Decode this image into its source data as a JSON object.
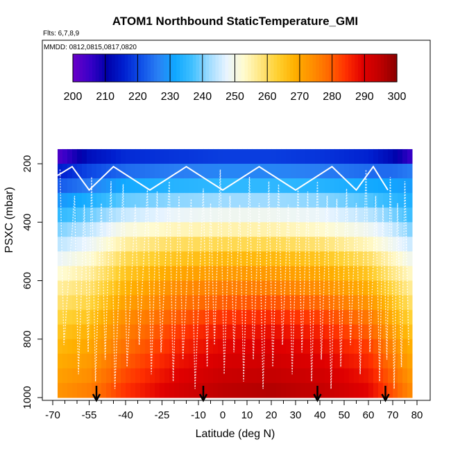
{
  "chart_data": {
    "type": "heatmap",
    "title": "ATOM1 Northbound StaticTemperature_GMI",
    "flights_label": "Flts: 6,7,8,9",
    "dates_label": "MMDD: 0812,0815,0817,0820",
    "xlabel": "Latitude (deg N)",
    "ylabel": "PSXC (mbar)",
    "xlim": [
      -70,
      80
    ],
    "ylim": [
      1000,
      150
    ],
    "x_ticks": [
      -70,
      -55,
      -40,
      -25,
      -10,
      0,
      10,
      20,
      30,
      40,
      50,
      60,
      70,
      80
    ],
    "x_tick_labels": [
      "-70",
      "-55",
      "-40",
      "-25",
      "-10",
      "0",
      "10",
      "20",
      "30",
      "40",
      "50",
      "60",
      "70",
      "80"
    ],
    "x_minor_ticks": [
      -65,
      -60,
      -50,
      -45,
      -35,
      -30,
      -20,
      -15,
      -5,
      5,
      15,
      25,
      35,
      45,
      55,
      65,
      75
    ],
    "y_ticks": [
      200,
      400,
      600,
      800,
      1000
    ],
    "y_tick_labels": [
      "200",
      "400",
      "600",
      "800",
      "1000"
    ],
    "colorbar": {
      "ticks": [
        200,
        210,
        220,
        230,
        240,
        250,
        260,
        270,
        280,
        290,
        300
      ],
      "labels": [
        "200",
        "210",
        "220",
        "230",
        "240",
        "250",
        "260",
        "270",
        "280",
        "290",
        "300"
      ],
      "colors": [
        "#6a00c8",
        "#3a00c8",
        "#0000aa",
        "#0020d0",
        "#1050e8",
        "#2a80f4",
        "#10a8ff",
        "#40c0ff",
        "#a0dcff",
        "#e8f4ff",
        "#fffbd0",
        "#ffe680",
        "#ffd030",
        "#ffb000",
        "#ff9000",
        "#ff6800",
        "#ff3000",
        "#e00000",
        "#c00000",
        "#8a0000"
      ],
      "range": [
        200,
        300
      ]
    },
    "pressure_levels": [
      175,
      225,
      275,
      325,
      375,
      425,
      475,
      525,
      575,
      625,
      675,
      725,
      775,
      825,
      875,
      925,
      975
    ],
    "profile_anchors": [
      {
        "p": 175,
        "lat": [
          -68,
          -55,
          -40,
          -20,
          0,
          20,
          40,
          60,
          70,
          78
        ],
        "t": [
          203,
          213,
          217,
          218,
          219,
          219,
          218,
          216,
          212,
          205
        ]
      },
      {
        "p": 225,
        "lat": [
          -68,
          -55,
          -40,
          -20,
          0,
          20,
          40,
          60,
          70,
          78
        ],
        "t": [
          215,
          220,
          224,
          226,
          227,
          227,
          226,
          224,
          224,
          226
        ]
      },
      {
        "p": 275,
        "lat": [
          -68,
          -55,
          -40,
          -20,
          0,
          20,
          40,
          60,
          70,
          78
        ],
        "t": [
          222,
          226,
          232,
          234,
          235,
          235,
          234,
          232,
          231,
          230
        ]
      },
      {
        "p": 325,
        "lat": [
          -68,
          -55,
          -40,
          -20,
          0,
          20,
          40,
          60,
          70,
          78
        ],
        "t": [
          229,
          233,
          239,
          241,
          242,
          242,
          241,
          238,
          235,
          233
        ]
      },
      {
        "p": 375,
        "lat": [
          -68,
          -55,
          -40,
          -20,
          0,
          20,
          40,
          60,
          70,
          78
        ],
        "t": [
          235,
          239,
          245,
          248,
          249,
          249,
          248,
          244,
          240,
          236
        ]
      },
      {
        "p": 425,
        "lat": [
          -68,
          -55,
          -40,
          -20,
          0,
          20,
          40,
          60,
          70,
          78
        ],
        "t": [
          240,
          244,
          251,
          254,
          255,
          255,
          253,
          249,
          245,
          240
        ]
      },
      {
        "p": 475,
        "lat": [
          -68,
          -55,
          -40,
          -20,
          0,
          20,
          40,
          60,
          70,
          78
        ],
        "t": [
          244,
          248,
          256,
          260,
          261,
          261,
          259,
          254,
          249,
          245
        ]
      },
      {
        "p": 525,
        "lat": [
          -68,
          -55,
          -40,
          -20,
          0,
          20,
          40,
          60,
          70,
          78
        ],
        "t": [
          248,
          252,
          261,
          265,
          267,
          267,
          265,
          260,
          254,
          249
        ]
      },
      {
        "p": 575,
        "lat": [
          -68,
          -55,
          -40,
          -20,
          0,
          20,
          40,
          60,
          70,
          78
        ],
        "t": [
          252,
          256,
          265,
          270,
          272,
          272,
          270,
          265,
          258,
          253
        ]
      },
      {
        "p": 625,
        "lat": [
          -68,
          -55,
          -40,
          -20,
          0,
          20,
          40,
          60,
          70,
          78
        ],
        "t": [
          256,
          259,
          268,
          274,
          276,
          276,
          274,
          269,
          262,
          256
        ]
      },
      {
        "p": 675,
        "lat": [
          -68,
          -55,
          -40,
          -20,
          0,
          20,
          40,
          60,
          70,
          78
        ],
        "t": [
          259,
          262,
          271,
          277,
          280,
          281,
          279,
          273,
          266,
          259
        ]
      },
      {
        "p": 725,
        "lat": [
          -68,
          -55,
          -40,
          -20,
          0,
          20,
          40,
          60,
          70,
          78
        ],
        "t": [
          262,
          265,
          274,
          280,
          284,
          285,
          283,
          277,
          269,
          262
        ]
      },
      {
        "p": 775,
        "lat": [
          -68,
          -55,
          -40,
          -20,
          0,
          20,
          40,
          60,
          70,
          78
        ],
        "t": [
          265,
          268,
          276,
          283,
          287,
          288,
          286,
          280,
          272,
          265
        ]
      },
      {
        "p": 825,
        "lat": [
          -68,
          -55,
          -40,
          -20,
          0,
          20,
          40,
          60,
          70,
          78
        ],
        "t": [
          267,
          270,
          278,
          285,
          289,
          290,
          288,
          283,
          275,
          268
        ]
      },
      {
        "p": 875,
        "lat": [
          -68,
          -55,
          -40,
          -20,
          0,
          20,
          40,
          60,
          70,
          78
        ],
        "t": [
          269,
          272,
          280,
          287,
          291,
          292,
          290,
          285,
          277,
          270
        ]
      },
      {
        "p": 925,
        "lat": [
          -68,
          -55,
          -40,
          -20,
          0,
          20,
          40,
          60,
          70,
          78
        ],
        "t": [
          271,
          274,
          282,
          289,
          293,
          294,
          292,
          287,
          279,
          272
        ]
      },
      {
        "p": 975,
        "lat": [
          -68,
          -55,
          -40,
          -20,
          0,
          20,
          40,
          60,
          70,
          78
        ],
        "t": [
          273,
          276,
          284,
          291,
          295,
          296,
          294,
          289,
          281,
          274
        ]
      }
    ],
    "arrow_latitudes": [
      -52,
      -8,
      39,
      67
    ]
  }
}
